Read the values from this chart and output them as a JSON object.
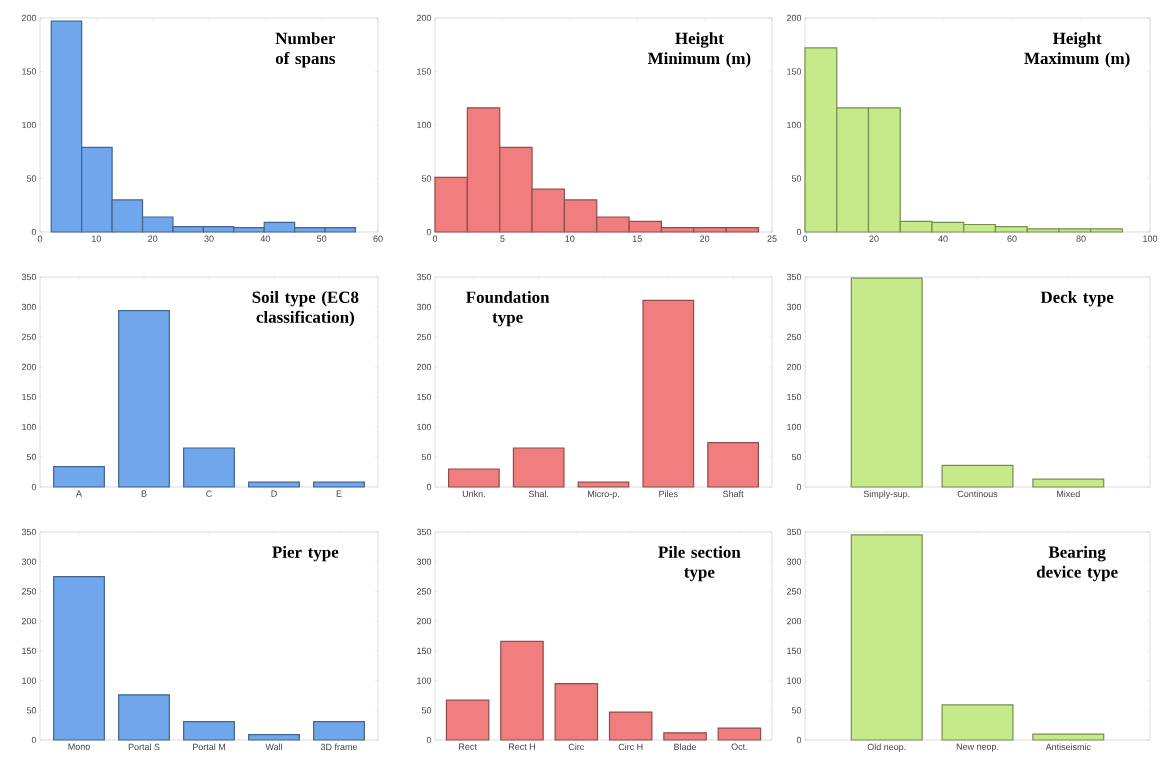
{
  "chart_data": [
    {
      "type": "histogram",
      "title": "Number of spans",
      "bins": [
        2,
        7.4,
        12.8,
        18.2,
        23.6,
        29,
        34.4,
        39.8,
        45.2,
        50.6,
        56
      ],
      "values": [
        197,
        79,
        30,
        14,
        5,
        5,
        4,
        9,
        4,
        4
      ],
      "color": "#6fa6ec",
      "xlim": [
        0,
        60
      ],
      "xticks": [
        0,
        10,
        20,
        30,
        40,
        50,
        60
      ],
      "ylim": [
        0,
        200
      ],
      "yticks": [
        0,
        50,
        100,
        150,
        200
      ]
    },
    {
      "type": "histogram",
      "title": "Height Minimum (m)",
      "bins": [
        0,
        2.4,
        4.8,
        7.2,
        9.6,
        12,
        14.4,
        16.8,
        19.2,
        21.6,
        24
      ],
      "values": [
        51,
        116,
        79,
        40,
        30,
        14,
        10,
        4,
        4,
        4
      ],
      "color": "#f07e7e",
      "xlim": [
        0,
        25
      ],
      "xticks": [
        0,
        5,
        10,
        15,
        20,
        25
      ],
      "ylim": [
        0,
        200
      ],
      "yticks": [
        0,
        50,
        100,
        150,
        200
      ]
    },
    {
      "type": "histogram",
      "title": "Height Maximum (m)",
      "bins": [
        0,
        9.2,
        18.4,
        27.6,
        36.8,
        46,
        55.2,
        64.4,
        73.6,
        82.8,
        92
      ],
      "values": [
        172,
        116,
        116,
        10,
        9,
        7,
        5,
        3,
        3,
        3
      ],
      "color": "#c6ea8a",
      "xlim": [
        0,
        100
      ],
      "xticks": [
        0,
        20,
        40,
        60,
        80,
        100
      ],
      "ylim": [
        0,
        200
      ],
      "yticks": [
        0,
        50,
        100,
        150,
        200
      ]
    },
    {
      "type": "bar",
      "title": "Soil type (EC8 classification)",
      "categories": [
        "A",
        "B",
        "C",
        "D",
        "E"
      ],
      "values": [
        34,
        294,
        65,
        8,
        8
      ],
      "color": "#6fa6ec",
      "ylim": [
        0,
        350
      ],
      "yticks": [
        0,
        50,
        100,
        150,
        200,
        250,
        300,
        350
      ]
    },
    {
      "type": "bar",
      "title": "Foundation type",
      "categories": [
        "Unkn.",
        "Shal.",
        "Micro-p.",
        "Piles",
        "Shaft"
      ],
      "values": [
        30,
        65,
        8,
        311,
        74
      ],
      "color": "#f07e7e",
      "ylim": [
        0,
        350
      ],
      "yticks": [
        0,
        50,
        100,
        150,
        200,
        250,
        300,
        350
      ]
    },
    {
      "type": "bar",
      "title": "Deck type",
      "categories": [
        "Simply-sup.",
        "Continous",
        "Mixed"
      ],
      "values": [
        348,
        36,
        13
      ],
      "color": "#c6ea8a",
      "ylim": [
        0,
        350
      ],
      "yticks": [
        0,
        50,
        100,
        150,
        200,
        250,
        300,
        350
      ]
    },
    {
      "type": "bar",
      "title": "Pier type",
      "categories": [
        "Mono",
        "Portal S",
        "Portal M",
        "Wall",
        "3D frame"
      ],
      "values": [
        275,
        76,
        31,
        9,
        31
      ],
      "color": "#6fa6ec",
      "ylim": [
        0,
        350
      ],
      "yticks": [
        0,
        50,
        100,
        150,
        200,
        250,
        300,
        350
      ]
    },
    {
      "type": "bar",
      "title": "Pile section type",
      "categories": [
        "Rect",
        "Rect H",
        "Circ",
        "Circ H",
        "Blade",
        "Oct."
      ],
      "values": [
        67,
        166,
        95,
        47,
        12,
        20
      ],
      "color": "#f07e7e",
      "ylim": [
        0,
        350
      ],
      "yticks": [
        0,
        50,
        100,
        150,
        200,
        250,
        300,
        350
      ]
    },
    {
      "type": "bar",
      "title": "Bearing device type",
      "categories": [
        "Old neop.",
        "New neop.",
        "Antiseismic"
      ],
      "values": [
        345,
        59,
        10
      ],
      "color": "#c6ea8a",
      "ylim": [
        0,
        350
      ],
      "yticks": [
        0,
        50,
        100,
        150,
        200,
        250,
        300,
        350
      ]
    }
  ]
}
